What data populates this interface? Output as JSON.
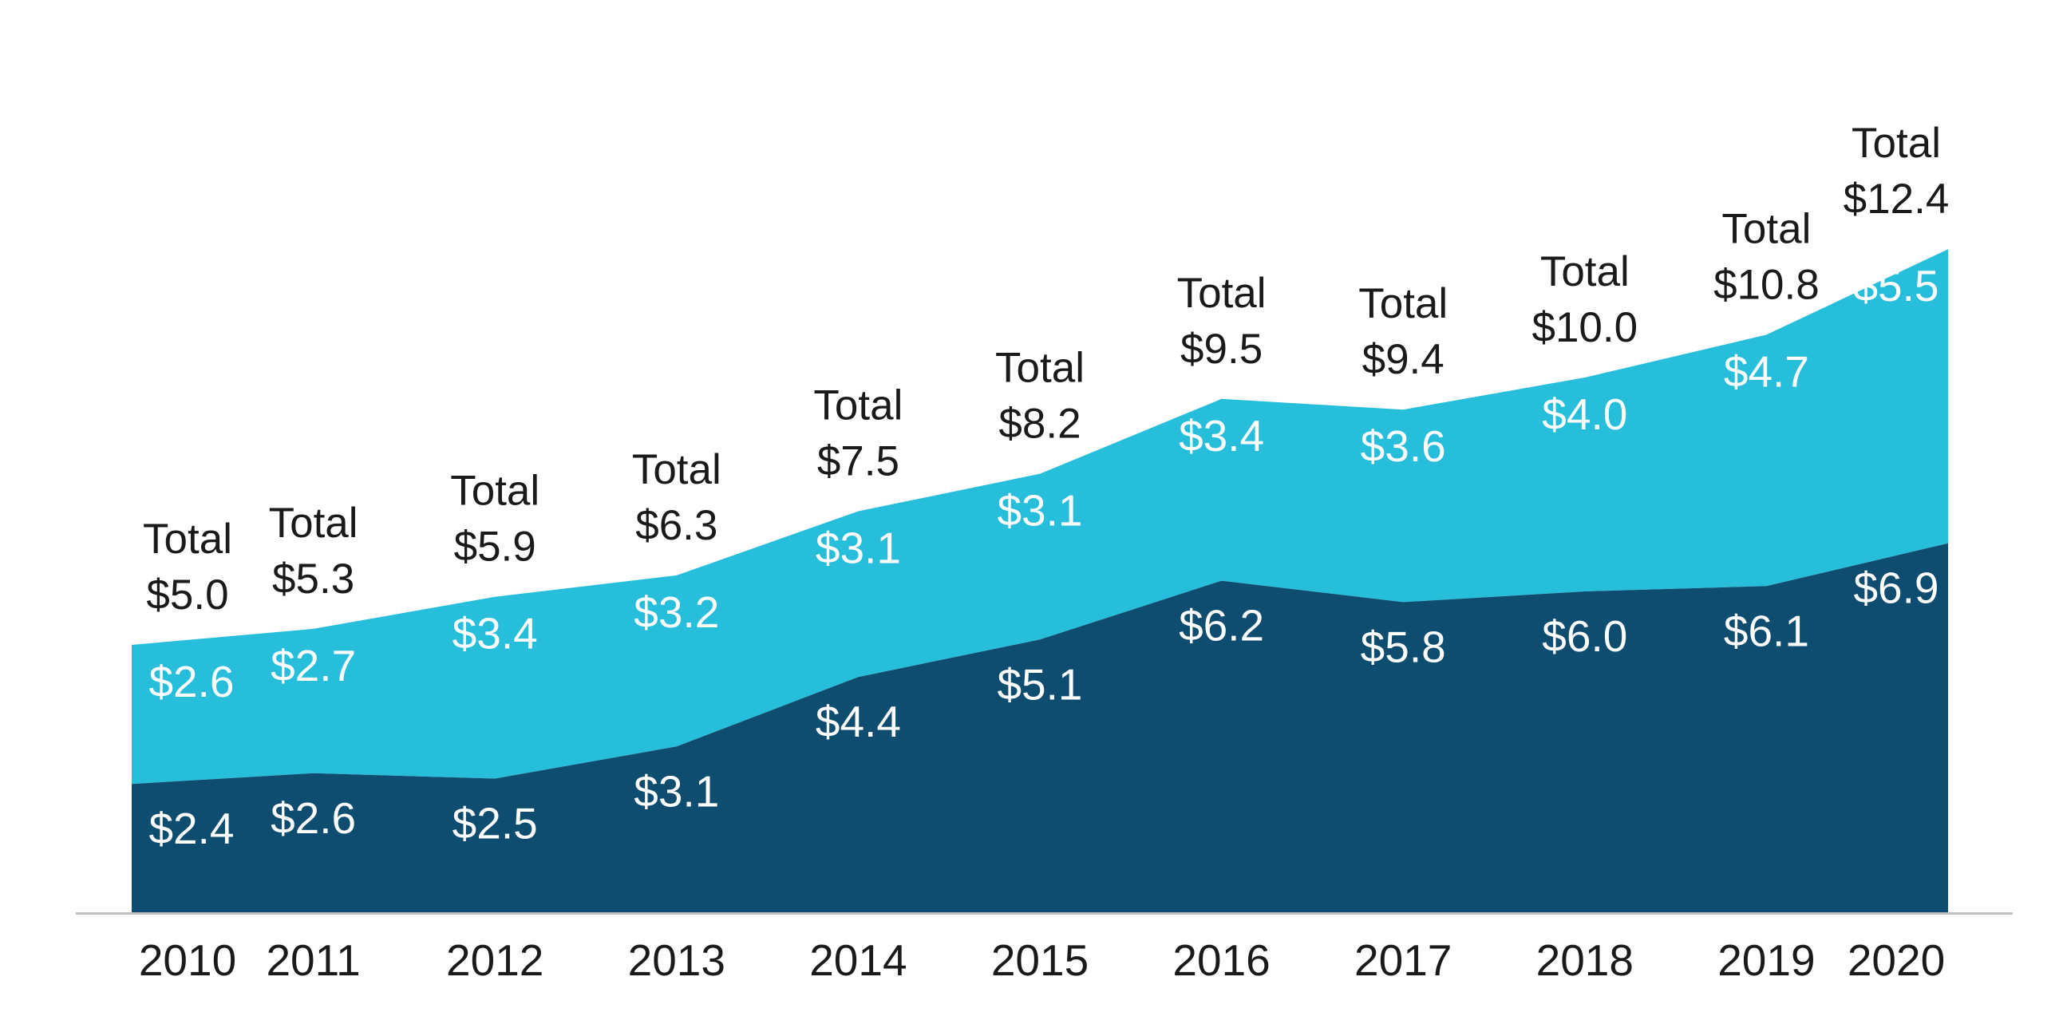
{
  "chart_data": {
    "type": "area",
    "stacked": true,
    "title": "",
    "xlabel": "",
    "ylabel": "",
    "ylim": [
      0,
      12.4
    ],
    "grid": false,
    "legend": "none",
    "categories": [
      "2010",
      "2011",
      "2012",
      "2013",
      "2014",
      "2015",
      "2016",
      "2017",
      "2018",
      "2019",
      "2020"
    ],
    "series": [
      {
        "color": "#0e4d6f",
        "values": [
          2.4,
          2.6,
          2.5,
          3.1,
          4.4,
          5.1,
          6.2,
          5.8,
          6.0,
          6.1,
          6.9
        ],
        "labels": [
          "$2.4",
          "$2.6",
          "$2.5",
          "$3.1",
          "$4.4",
          "$5.1",
          "$6.2",
          "$5.8",
          "$6.0",
          "$6.1",
          "$6.9"
        ]
      },
      {
        "color": "#27bedc",
        "values": [
          2.6,
          2.7,
          3.4,
          3.2,
          3.1,
          3.1,
          3.4,
          3.6,
          4.0,
          4.7,
          5.5
        ],
        "labels": [
          "$2.6",
          "$2.7",
          "$3.4",
          "$3.2",
          "$3.1",
          "$3.1",
          "$3.4",
          "$3.6",
          "$4.0",
          "$4.7",
          "$5.5"
        ]
      }
    ],
    "totals": {
      "word": "Total",
      "values": [
        5.0,
        5.3,
        5.9,
        6.3,
        7.5,
        8.2,
        9.5,
        9.4,
        10.0,
        10.8,
        12.4
      ],
      "labels": [
        "$5.0",
        "$5.3",
        "$5.9",
        "$6.3",
        "$7.5",
        "$8.2",
        "$9.5",
        "$9.4",
        "$10.0",
        "$10.8",
        "$12.4"
      ]
    },
    "axis_color": "#bfbfbf"
  }
}
